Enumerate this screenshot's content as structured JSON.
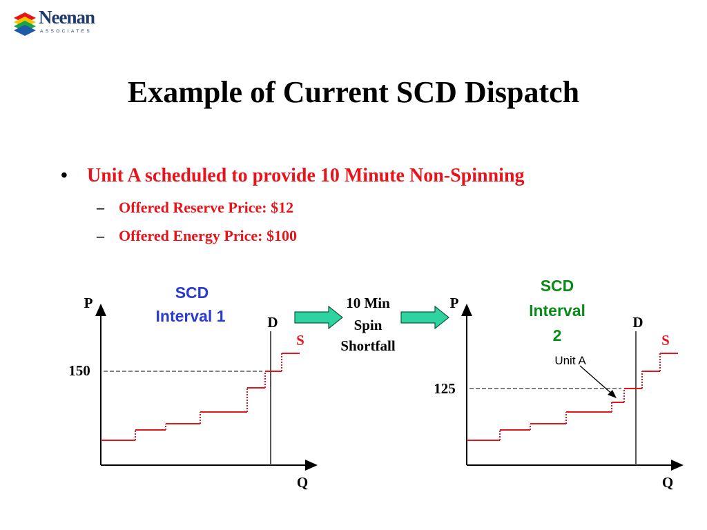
{
  "logo": {
    "name": "Neenan",
    "subtitle": "ASSOCIATES",
    "colors": [
      "#e8141b",
      "#f5c400",
      "#18a34a",
      "#1f5aa8"
    ]
  },
  "title": "Example of Current SCD Dispatch",
  "bullet": {
    "marker": "•",
    "text": "Unit A scheduled to provide 10 Minute Non-Spinning",
    "sub_marker": "–",
    "subitems": [
      "Offered Reserve Price: $12",
      "Offered Energy Price: $100"
    ]
  },
  "arrow_label": [
    "10 Min",
    "Spin",
    "Shortfall"
  ],
  "colors": {
    "supply": "#e8141b",
    "arrow_fill": "#2ed3a0",
    "interval1": "#2a3bcf",
    "interval2": "#0a8a17"
  },
  "chart1": {
    "title_lines": [
      "SCD",
      "Interval 1"
    ],
    "y_axis_label": "P",
    "x_axis_label": "Q",
    "demand_label": "D",
    "supply_label": "S",
    "price_label": "150"
  },
  "chart2": {
    "title_lines": [
      "SCD",
      "Interval",
      "2"
    ],
    "y_axis_label": "P",
    "x_axis_label": "Q",
    "demand_label": "D",
    "supply_label": "S",
    "price_label": "125",
    "annotation": "Unit A"
  }
}
